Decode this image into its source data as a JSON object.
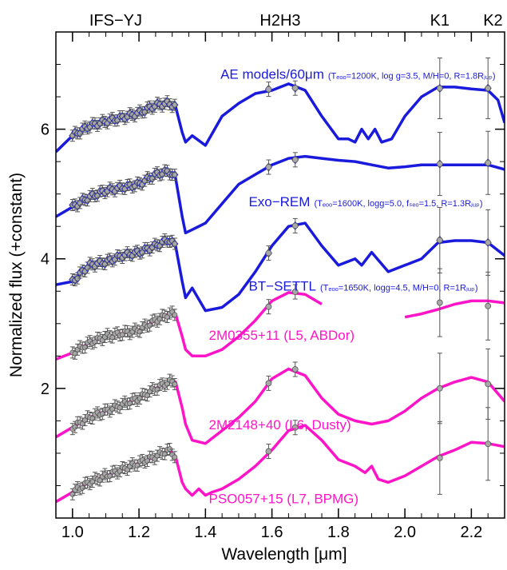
{
  "chart_data": {
    "type": "line",
    "xlabel": "Wavelength [μm]",
    "ylabel": "Normalized flux (+constant)",
    "xlim": [
      0.95,
      2.3
    ],
    "ylim": [
      0.0,
      7.5
    ],
    "x_ticks": [
      1.0,
      1.2,
      1.4,
      1.6,
      1.8,
      2.0,
      2.2
    ],
    "x_tick_labels": [
      "1.0",
      "1.2",
      "1.4",
      "1.6",
      "1.8",
      "2.0",
      "2.2"
    ],
    "y_ticks": [
      2,
      4,
      6
    ],
    "y_tick_labels": [
      "2",
      "4",
      "6"
    ],
    "grid": false,
    "band_labels": [
      {
        "text": "IFS−YJ",
        "x": 1.13
      },
      {
        "text": "H2H3",
        "x": 1.625
      },
      {
        "text": "K1",
        "x": 2.105
      },
      {
        "text": "K2",
        "x": 2.265
      }
    ],
    "colors": {
      "model": "#1a1adc",
      "object": "#ff14c8",
      "point": "#a8a8a8",
      "model_point": "#40e0e0",
      "error": "#555555"
    },
    "series": [
      {
        "name": "AE models/60μm",
        "params": "(Tₑₒₒ=1200K, log g=3.5, M/H=0, R=1.8Rⱼᵤₚ)",
        "kind": "model",
        "offset": 4.9,
        "label_at": [
          1.445,
          6.78
        ],
        "x": [
          0.95,
          1.0,
          1.05,
          1.1,
          1.15,
          1.2,
          1.25,
          1.29,
          1.31,
          1.33,
          1.34,
          1.36,
          1.4,
          1.45,
          1.5,
          1.55,
          1.6,
          1.65,
          1.7,
          1.75,
          1.8,
          1.83,
          1.85,
          1.87,
          1.89,
          1.91,
          1.93,
          1.96,
          2.0,
          2.05,
          2.1,
          2.15,
          2.2,
          2.25,
          2.28,
          2.3
        ],
        "y": [
          0.75,
          1.0,
          1.15,
          1.22,
          1.28,
          1.35,
          1.47,
          1.5,
          1.45,
          1.05,
          0.9,
          1.0,
          0.85,
          1.3,
          1.5,
          1.65,
          1.7,
          1.8,
          1.7,
          1.3,
          0.95,
          0.95,
          0.9,
          1.1,
          0.95,
          1.1,
          0.9,
          0.95,
          1.3,
          1.6,
          1.75,
          1.75,
          1.72,
          1.7,
          1.55,
          1.2
        ]
      },
      {
        "name": "Exo−REM",
        "params": "(Tₑₒₒ=1600K, logg=5.0, fₛₑₒ=1.5, R=1.3Rⱼᵤₚ)",
        "kind": "model",
        "offset": 3.6,
        "label_at": [
          1.53,
          4.81
        ],
        "x": [
          0.95,
          1.0,
          1.05,
          1.1,
          1.15,
          1.2,
          1.25,
          1.29,
          1.31,
          1.33,
          1.34,
          1.36,
          1.4,
          1.45,
          1.5,
          1.55,
          1.6,
          1.65,
          1.7,
          1.75,
          1.8,
          1.85,
          1.9,
          1.95,
          2.0,
          2.05,
          2.1,
          2.15,
          2.2,
          2.25,
          2.3
        ],
        "y": [
          1.05,
          1.2,
          1.35,
          1.45,
          1.5,
          1.55,
          1.7,
          1.75,
          1.65,
          1.05,
          0.8,
          0.85,
          0.95,
          1.25,
          1.55,
          1.7,
          1.85,
          1.95,
          1.98,
          1.95,
          1.92,
          1.9,
          1.85,
          1.8,
          1.82,
          1.85,
          1.85,
          1.85,
          1.85,
          1.85,
          1.78
        ]
      },
      {
        "name": "BT−SETTL",
        "params": "(Tₑₒₒ=1650K, logg=4.5, M/H=0, R=1Rⱼᵤₚ)",
        "kind": "model",
        "offset": 2.6,
        "label_at": [
          1.53,
          3.51
        ],
        "x": [
          0.95,
          1.0,
          1.05,
          1.1,
          1.15,
          1.2,
          1.25,
          1.29,
          1.31,
          1.33,
          1.34,
          1.36,
          1.4,
          1.45,
          1.5,
          1.55,
          1.6,
          1.65,
          1.7,
          1.75,
          1.8,
          1.85,
          1.87,
          1.9,
          1.95,
          2.0,
          2.05,
          2.1,
          2.15,
          2.2,
          2.25,
          2.3
        ],
        "y": [
          1.0,
          1.05,
          1.3,
          1.35,
          1.45,
          1.5,
          1.6,
          1.7,
          1.6,
          1.05,
          0.8,
          0.95,
          0.6,
          0.65,
          0.85,
          1.2,
          1.6,
          1.9,
          1.95,
          1.6,
          1.3,
          1.4,
          1.3,
          1.5,
          1.2,
          1.3,
          1.4,
          1.65,
          1.68,
          1.68,
          1.65,
          1.45
        ]
      },
      {
        "name": "2M0355+11 (L5, ABDor)",
        "kind": "object",
        "offset": 1.6,
        "label_at": [
          1.41,
          2.75
        ],
        "x": [
          0.95,
          1.0,
          1.05,
          1.1,
          1.15,
          1.2,
          1.25,
          1.29,
          1.31,
          1.33,
          1.34,
          1.36,
          1.4,
          1.45,
          1.5,
          1.55,
          1.6,
          1.65,
          1.7,
          1.75
        ],
        "y": [
          0.85,
          0.95,
          1.1,
          1.2,
          1.25,
          1.3,
          1.45,
          1.55,
          1.55,
          1.2,
          1.0,
          0.9,
          0.9,
          1.0,
          1.2,
          1.45,
          1.75,
          1.88,
          1.85,
          1.7
        ],
        "x2": [
          2.0,
          2.05,
          2.1,
          2.15,
          2.2,
          2.25,
          2.3
        ],
        "y2": [
          1.5,
          1.55,
          1.62,
          1.7,
          1.75,
          1.75,
          1.72
        ]
      },
      {
        "name": "2M2148+40 (L6, Dusty)",
        "kind": "object",
        "offset": 0.55,
        "label_at": [
          1.41,
          1.37
        ],
        "x": [
          0.95,
          1.0,
          1.05,
          1.1,
          1.15,
          1.2,
          1.25,
          1.29,
          1.31,
          1.33,
          1.34,
          1.36,
          1.4,
          1.45,
          1.5,
          1.55,
          1.6,
          1.65,
          1.7,
          1.75,
          1.8,
          1.85,
          1.9,
          1.95,
          2.0,
          2.05,
          2.1,
          2.15,
          2.2,
          2.25,
          2.3
        ],
        "y": [
          0.7,
          0.85,
          1.0,
          1.1,
          1.2,
          1.3,
          1.45,
          1.55,
          1.55,
          1.15,
          0.9,
          0.65,
          0.6,
          0.8,
          1.0,
          1.25,
          1.6,
          1.75,
          1.65,
          1.3,
          1.05,
          0.95,
          0.9,
          0.95,
          1.1,
          1.3,
          1.45,
          1.55,
          1.62,
          1.55,
          1.25
        ]
      },
      {
        "name": "PSO057+15 (L7, BPMG)",
        "kind": "object",
        "offset": -0.35,
        "label_at": [
          1.41,
          0.23
        ],
        "x": [
          0.95,
          1.0,
          1.05,
          1.1,
          1.15,
          1.2,
          1.25,
          1.29,
          1.31,
          1.33,
          1.34,
          1.36,
          1.38,
          1.4,
          1.42,
          1.45,
          1.5,
          1.55,
          1.6,
          1.65,
          1.7,
          1.75,
          1.8,
          1.85,
          1.88,
          1.9,
          1.92,
          1.95,
          2.0,
          2.05,
          2.1,
          2.15,
          2.2,
          2.25,
          2.3
        ],
        "y": [
          0.6,
          0.75,
          0.9,
          1.0,
          1.1,
          1.2,
          1.3,
          1.4,
          1.3,
          0.9,
          0.8,
          0.7,
          0.8,
          0.7,
          0.75,
          0.8,
          0.95,
          1.15,
          1.4,
          1.7,
          1.78,
          1.55,
          1.25,
          1.15,
          1.05,
          1.15,
          0.95,
          0.9,
          1.0,
          1.15,
          1.3,
          1.4,
          1.52,
          1.5,
          1.45
        ]
      }
    ]
  }
}
